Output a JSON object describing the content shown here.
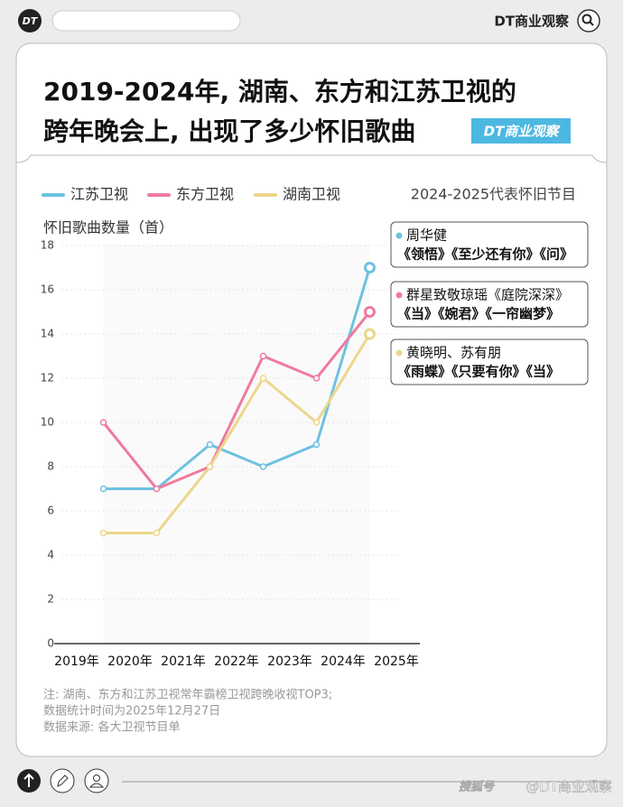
{
  "header": {
    "logo": "DT",
    "brand": "DT商业观察"
  },
  "title": [
    "2019-2024年, 湖南、东方和江苏卫视的",
    "跨年晚会上, 出现了多少怀旧歌曲"
  ],
  "badge": "DT商业观察",
  "chart_data": {
    "type": "line",
    "legend_title": "2024-2025代表怀旧节目",
    "y_label": "怀旧歌曲数量（首）",
    "x_labels": [
      "2019年",
      "2020年",
      "2021年",
      "2022年",
      "2023年",
      "2024年",
      "2025年"
    ],
    "series": [
      {
        "name": "江苏卫视",
        "color": "#6ec1e0",
        "values": [
          7,
          7,
          9,
          8,
          9,
          17
        ]
      },
      {
        "name": "东方卫视",
        "color": "#f07aa0",
        "values": [
          10,
          7,
          8,
          13,
          12,
          15
        ]
      },
      {
        "name": "湖南卫视",
        "color": "#ecd78a",
        "values": [
          5,
          5,
          8,
          12,
          10,
          14
        ]
      }
    ],
    "ylim": [
      0,
      18
    ],
    "yticks": [
      0,
      2,
      4,
      6,
      8,
      10,
      12,
      14,
      16,
      18
    ],
    "annotations": [
      {
        "lines": [
          "周华健",
          "《领悟》《至少还有你》《问》"
        ]
      },
      {
        "lines": [
          "群星致敬琼瑶《庭院深深》",
          "《当》《婉君》《一帘幽梦》"
        ]
      },
      {
        "lines": [
          "黄晓明、苏有朋",
          "《雨蝶》《只要有你》《当》"
        ]
      }
    ]
  },
  "notes": [
    "注: 湖南、东方和江苏卫视常年霸榜卫视跨晚收视TOP3;",
    "数据统计时间为2025年12月27日",
    "数据来源: 各大卫视节目单"
  ],
  "footer": {
    "watermark": "搜狐号",
    "handle": "@DT商业观察"
  }
}
